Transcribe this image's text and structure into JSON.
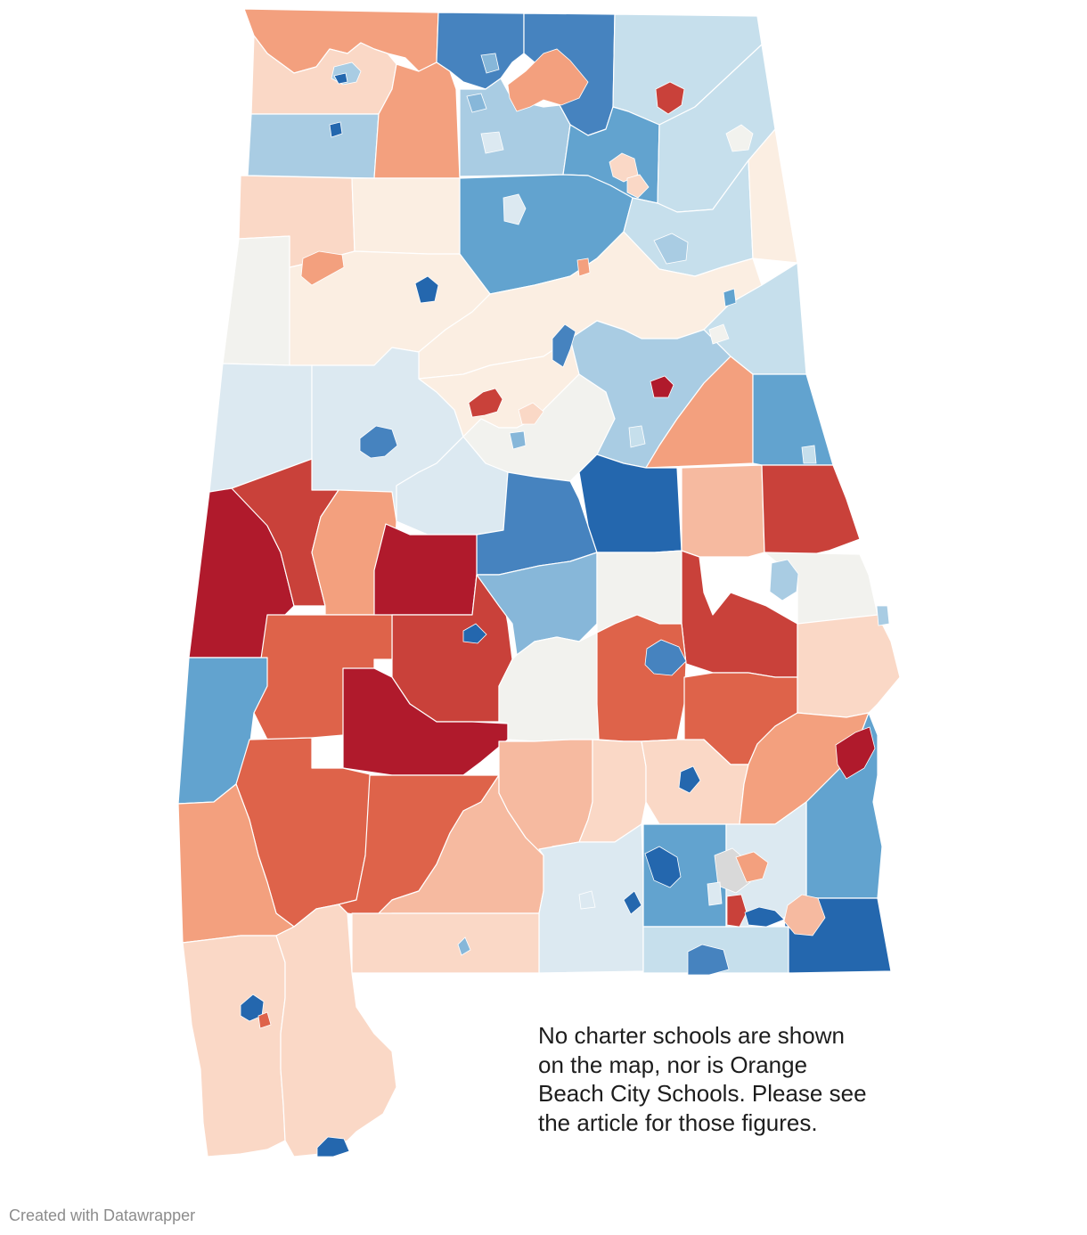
{
  "map": {
    "palette": {
      "dark_red": "#b01a2c",
      "red": "#c9413a",
      "red_orange": "#de634a",
      "orange": "#ec8a63",
      "salmon": "#f3a07e",
      "peach": "#f6baa0",
      "light_peach": "#fad8c6",
      "cream": "#fbeee2",
      "neutral": "#f2f2ee",
      "pale_blue": "#dce9f1",
      "light_blue": "#c6dfec",
      "sky_blue": "#a9cce3",
      "mid_blue": "#87b7d9",
      "blue": "#62a3cf",
      "strong_blue": "#4683bf",
      "dark_blue": "#2467ae",
      "grey": "#d9d9d9"
    }
  },
  "annotation": {
    "lines": [
      "No charter schools are shown",
      "on the map, nor is Orange",
      "Beach City Schools. Please see",
      "the article for those figures."
    ]
  },
  "footer": {
    "credit": "Created with Datawrapper"
  }
}
